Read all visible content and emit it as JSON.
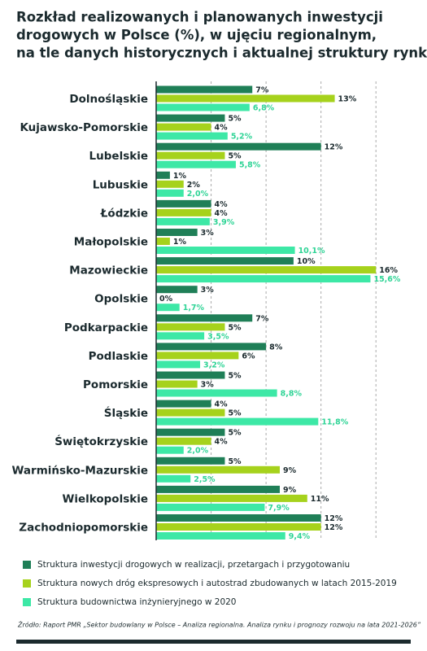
{
  "chart_data": {
    "type": "hbar",
    "title": [
      "Rozkład realizowanych i planowanych inwestycji",
      "drogowych w Polsce (%), w ujęciu regionalnym,",
      "na tle danych historycznych i aktualnej struktury rynku"
    ],
    "categories": [
      "Dolnośląskie",
      "Kujawsko-Pomorskie",
      "Lubelskie",
      "Lubuskie",
      "Łódzkie",
      "Małopolskie",
      "Mazowieckie",
      "Opolskie",
      "Podkarpackie",
      "Podlaskie",
      "Pomorskie",
      "Śląskie",
      "Świętokrzyskie",
      "Warmińsko-Mazurskie",
      "Wielkopolskie",
      "Zachodniopomorskie"
    ],
    "series": [
      {
        "name": "Struktura inwestycji drogowych w realizacji, przetargach i przygotowaniu",
        "color": "#1f7f57",
        "values": [
          7,
          5,
          12,
          1,
          4,
          3,
          10,
          3,
          7,
          8,
          5,
          4,
          5,
          5,
          9,
          12
        ],
        "value_labels": [
          "7%",
          "5%",
          "12%",
          "1%",
          "4%",
          "3%",
          "10%",
          "3%",
          "7%",
          "8%",
          "5%",
          "4%",
          "5%",
          "5%",
          "9%",
          "12%"
        ]
      },
      {
        "name": "Struktura nowych dróg ekspresowych i autostrad zbudowanych w latach 2015-2019",
        "color": "#a6d21c",
        "values": [
          13,
          4,
          5,
          2,
          4,
          1,
          16,
          0,
          5,
          6,
          3,
          5,
          4,
          9,
          11,
          12
        ],
        "value_labels": [
          "13%",
          "4%",
          "5%",
          "2%",
          "4%",
          "1%",
          "16%",
          "0%",
          "5%",
          "6%",
          "3%",
          "5%",
          "4%",
          "9%",
          "11%",
          "12%"
        ]
      },
      {
        "name": "Struktura budownictwa inżynieryjnego w 2020",
        "color": "#3de8a6",
        "values": [
          6.8,
          5.2,
          5.8,
          2.0,
          3.9,
          10.1,
          15.6,
          1.7,
          3.5,
          3.2,
          8.8,
          11.8,
          2.0,
          2.5,
          7.9,
          9.4
        ],
        "value_labels": [
          "6,8%",
          "5,2%",
          "5,8%",
          "2,0%",
          "3,9%",
          "10,1%",
          "15,6%",
          "1,7%",
          "3,5%",
          "3,2%",
          "8,8%",
          "11,8%",
          "2,0%",
          "2,5%",
          "7,9%",
          "9,4%"
        ]
      }
    ],
    "xlim": [
      0,
      18
    ],
    "xticks": [
      0,
      4,
      8,
      12,
      16
    ],
    "grid": true,
    "source": "Źródło: Raport PMR „Sektor budowlany w Polsce – Analiza regionalna. Analiza rynku i prognozy rozwoju na lata 2021-2026”"
  }
}
